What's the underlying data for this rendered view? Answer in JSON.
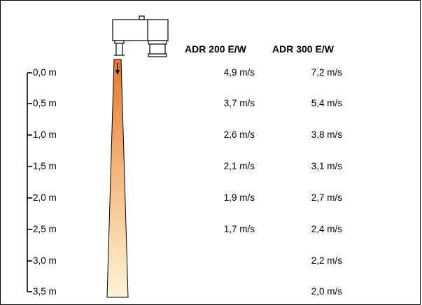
{
  "headers": {
    "adr200": "ADR 200 E/W",
    "adr300": "ADR 300 E/W"
  },
  "distances": [
    "0,0 m",
    "0,5 m",
    "1,0 m",
    "1,5 m",
    "2,0 m",
    "2,5 m",
    "3,0 m",
    "3,5 m"
  ],
  "adr200_speeds": [
    "4,9 m/s",
    "3,7 m/s",
    "2,6 m/s",
    "2,1 m/s",
    "1,9 m/s",
    "1,7 m/s"
  ],
  "adr300_speeds": [
    "7,2 m/s",
    "5,4 m/s",
    "3,8 m/s",
    "3,1 m/s",
    "2,7 m/s",
    "2,4 m/s",
    "2,2 m/s",
    "2,0 m/s"
  ],
  "colors": {
    "jet_top": "#e5782c",
    "jet_bottom": "#fdf5d6",
    "line": "#000000"
  }
}
